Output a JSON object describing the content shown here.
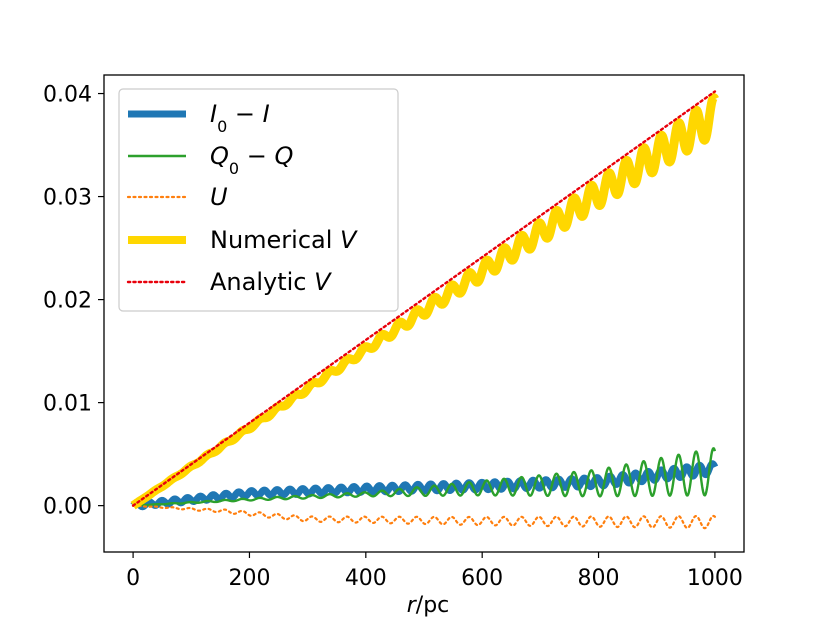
{
  "chart_data": {
    "type": "line",
    "title": "",
    "xlabel_italic": "r",
    "xlabel_unit": "/pc",
    "ylabel": "",
    "xlim": [
      -50,
      1050
    ],
    "ylim": [
      -0.0045,
      0.0418
    ],
    "xticks": [
      0,
      200,
      400,
      600,
      800,
      1000
    ],
    "xtick_labels": [
      "0",
      "200",
      "400",
      "600",
      "800",
      "1000"
    ],
    "yticks": [
      0.0,
      0.01,
      0.02,
      0.03,
      0.04
    ],
    "ytick_labels": [
      "0.00",
      "0.01",
      "0.02",
      "0.03",
      "0.04"
    ],
    "grid": false,
    "legend_position": "upper-left",
    "series": [
      {
        "name": "I0 - I",
        "legend": {
          "base": "I",
          "sub": "0",
          "op": " − ",
          "tail": "I"
        },
        "color": "#1f77b4",
        "style": "solid",
        "x_range": [
          0,
          1000
        ],
        "trend": [
          [
            0,
            0.0
          ],
          [
            200,
            0.0012
          ],
          [
            400,
            0.0016
          ],
          [
            600,
            0.0019
          ],
          [
            800,
            0.0023
          ],
          [
            1000,
            0.0036
          ]
        ],
        "oscillation_period": 22,
        "amplitude": [
          [
            0,
            0.0002
          ],
          [
            400,
            0.0003
          ],
          [
            1000,
            0.0005
          ]
        ]
      },
      {
        "name": "Q0 - Q",
        "legend": {
          "base": "Q",
          "sub": "0",
          "op": " − ",
          "tail": "Q"
        },
        "color": "#2ca02c",
        "style": "solid",
        "x_range": [
          0,
          1000
        ],
        "trend": [
          [
            0,
            0.0
          ],
          [
            200,
            0.0006
          ],
          [
            400,
            0.0011
          ],
          [
            600,
            0.0017
          ],
          [
            800,
            0.0022
          ],
          [
            1000,
            0.0033
          ]
        ],
        "oscillation_period": 30,
        "amplitude": [
          [
            0,
            0.0
          ],
          [
            400,
            0.0002
          ],
          [
            600,
            0.0007
          ],
          [
            800,
            0.0013
          ],
          [
            1000,
            0.0023
          ]
        ]
      },
      {
        "name": "U",
        "legend": {
          "base": "U"
        },
        "color": "#ff7f0e",
        "style": "dotted",
        "x_range": [
          0,
          1000
        ],
        "trend": [
          [
            0,
            0.0
          ],
          [
            150,
            -0.0005
          ],
          [
            300,
            -0.0013
          ],
          [
            600,
            -0.0015
          ],
          [
            1000,
            -0.0016
          ]
        ],
        "oscillation_period": 30,
        "amplitude": [
          [
            0,
            0.0
          ],
          [
            200,
            0.0002
          ],
          [
            1000,
            0.0006
          ]
        ]
      },
      {
        "name": "Numerical V",
        "legend": {
          "text": "Numerical ",
          "tail": "V"
        },
        "color": "#ffd700",
        "style": "solid",
        "x_range": [
          0,
          1000
        ],
        "trend": [
          [
            0,
            0.0
          ],
          [
            1000,
            0.0379
          ]
        ],
        "oscillation_period": 30,
        "amplitude": [
          [
            0,
            0.0
          ],
          [
            400,
            0.0003
          ],
          [
            700,
            0.001
          ],
          [
            1000,
            0.0018
          ]
        ]
      },
      {
        "name": "Analytic V",
        "legend": {
          "text": "Analytic ",
          "tail": "V"
        },
        "color": "#e8000b",
        "style": "dotted",
        "x_range": [
          0,
          1000
        ],
        "trend": [
          [
            0,
            0.0
          ],
          [
            1000,
            0.0402
          ]
        ],
        "oscillation_period": 0,
        "amplitude": [
          [
            0,
            0.0
          ]
        ]
      }
    ]
  }
}
